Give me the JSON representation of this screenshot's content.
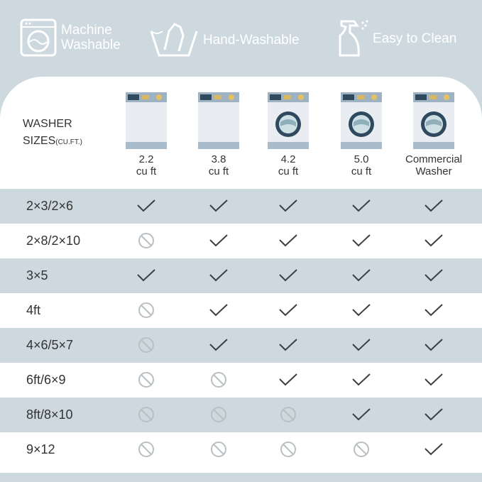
{
  "features": [
    {
      "icon": "washing-machine-icon",
      "label_lines": [
        "Machine",
        "Washable"
      ]
    },
    {
      "icon": "hand-wash-basin-icon",
      "label_lines": [
        "Hand-Washable"
      ]
    },
    {
      "icon": "spray-bottle-icon",
      "label_lines": [
        "Easy to Clean"
      ]
    }
  ],
  "table": {
    "header_label": "WASHER",
    "header_label2": "SIZES",
    "header_unit": "(CU.FT.)",
    "columns": [
      {
        "line1": "2.2",
        "line2": "cu ft",
        "has_drum": false
      },
      {
        "line1": "3.8",
        "line2": "cu ft",
        "has_drum": false
      },
      {
        "line1": "4.2",
        "line2": "cu ft",
        "has_drum": true
      },
      {
        "line1": "5.0",
        "line2": "cu ft",
        "has_drum": true
      },
      {
        "line1": "Commercial",
        "line2": "Washer",
        "has_drum": true
      }
    ],
    "rows": [
      {
        "label": "2×3/2×6",
        "values": [
          true,
          true,
          true,
          true,
          true
        ]
      },
      {
        "label": "2×8/2×10",
        "values": [
          false,
          true,
          true,
          true,
          true
        ]
      },
      {
        "label": "3×5",
        "values": [
          true,
          true,
          true,
          true,
          true
        ]
      },
      {
        "label": "4ft",
        "values": [
          false,
          true,
          true,
          true,
          true
        ]
      },
      {
        "label": "4×6/5×7",
        "values": [
          false,
          true,
          true,
          true,
          true
        ]
      },
      {
        "label": "6ft/6×9",
        "values": [
          false,
          false,
          true,
          true,
          true
        ]
      },
      {
        "label": "8ft/8×10",
        "values": [
          false,
          false,
          false,
          true,
          true
        ]
      },
      {
        "label": "9×12",
        "values": [
          false,
          false,
          false,
          false,
          true
        ]
      }
    ]
  },
  "colors": {
    "background": "#cdd9de",
    "check": "#3a3f44",
    "no": "#b9bfc3"
  }
}
